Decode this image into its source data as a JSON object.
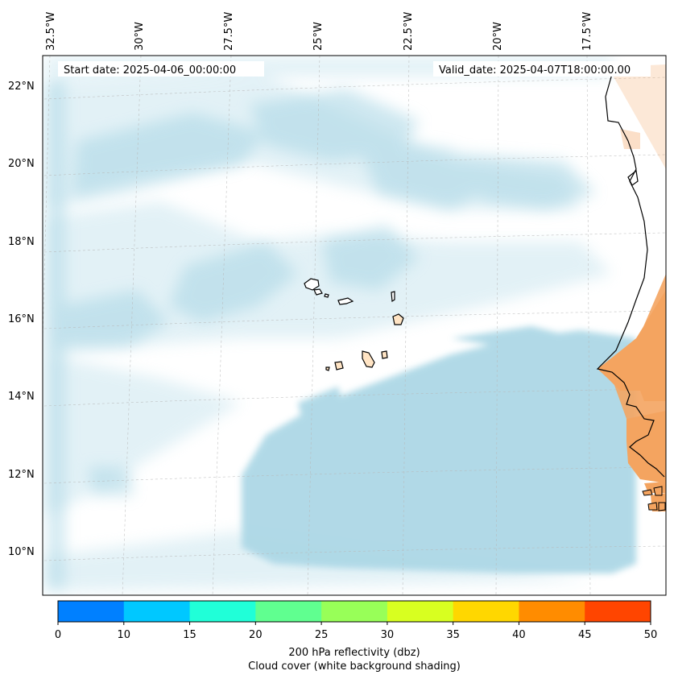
{
  "map": {
    "region": "Cape Verde and West African coast",
    "lon_range": [
      -33.0,
      -15.0
    ],
    "lat_range": [
      9.0,
      22.8
    ],
    "graticule_style": "dashed light gray",
    "land_color": "#f4a460",
    "cloud_color": "#add8e6",
    "lon_labels": [
      "32.5°W",
      "30°W",
      "27.5°W",
      "25°W",
      "22.5°W",
      "20°W",
      "17.5°W"
    ],
    "lat_labels": [
      "22°N",
      "20°N",
      "18°N",
      "16°N",
      "14°N",
      "12°N",
      "10°N"
    ]
  },
  "header": {
    "start_date": "Start date: 2025-04-06_00:00:00",
    "valid_date": "Valid_date: 2025-04-07T18:00:00.00"
  },
  "colorbar": {
    "label_line1": "200 hPa reflectivity (dbz)",
    "label_line2": "Cloud cover (white background shading)",
    "ticks": [
      "0",
      "10",
      "15",
      "20",
      "25",
      "30",
      "35",
      "40",
      "45",
      "50"
    ],
    "colors": [
      "#0080ff",
      "#00c8ff",
      "#20ffd8",
      "#60ff90",
      "#98ff58",
      "#d8ff20",
      "#ffd700",
      "#ff8c00",
      "#ff4500"
    ]
  }
}
